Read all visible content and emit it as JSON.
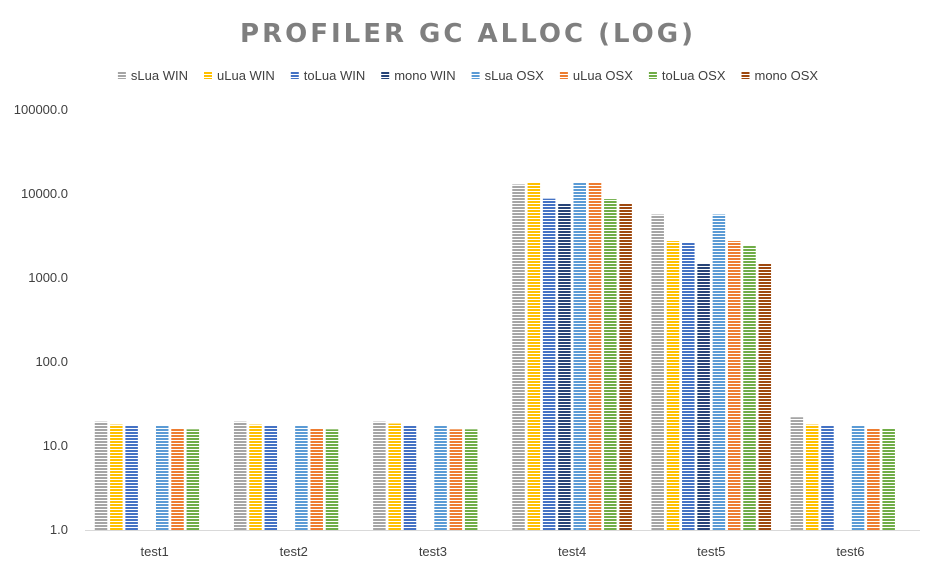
{
  "chart_data": {
    "type": "bar",
    "title": "PROFILER GC ALLOC (LOG)",
    "xlabel": "",
    "ylabel": "",
    "yscale": "log",
    "ylim": [
      1,
      100000
    ],
    "yticks": [
      "1.0",
      "10.0",
      "100.0",
      "1000.0",
      "10000.0",
      "100000.0"
    ],
    "yticks_values": [
      1,
      10,
      100,
      1000,
      10000,
      100000
    ],
    "grid": false,
    "legend": "top",
    "categories": [
      "test1",
      "test2",
      "test3",
      "test4",
      "test5",
      "test6"
    ],
    "series": [
      {
        "name": "sLua WIN",
        "color": "#a5a5a5",
        "values": [
          19.5,
          19.5,
          19.5,
          13000,
          5700,
          22
        ]
      },
      {
        "name": "uLua WIN",
        "color": "#ffc000",
        "values": [
          18,
          18,
          18.5,
          13800,
          2750,
          18
        ]
      },
      {
        "name": "toLua WIN",
        "color": "#4472c4",
        "values": [
          17.5,
          17.5,
          17.5,
          8800,
          2650,
          17.5
        ]
      },
      {
        "name": "mono WIN",
        "color": "#264478",
        "values": [
          0,
          0,
          0,
          7700,
          1500,
          0
        ]
      },
      {
        "name": "sLua OSX",
        "color": "#5b9bd5",
        "values": [
          17.5,
          17.5,
          17.5,
          13700,
          5700,
          17.5
        ]
      },
      {
        "name": "uLua OSX",
        "color": "#ed7d31",
        "values": [
          16,
          16,
          15.8,
          13700,
          2750,
          16
        ]
      },
      {
        "name": "toLua OSX",
        "color": "#70ad47",
        "values": [
          15.8,
          15.8,
          15.8,
          8700,
          2450,
          16
        ]
      },
      {
        "name": "mono OSX",
        "color": "#9e480e",
        "values": [
          0,
          0,
          0,
          7700,
          1500,
          0
        ]
      }
    ]
  }
}
